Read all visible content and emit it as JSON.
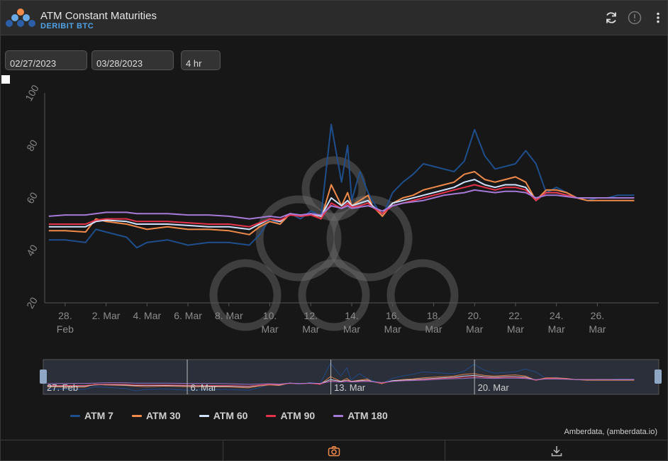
{
  "header": {
    "title": "ATM Constant Maturities",
    "subtitle": "DERIBIT BTC"
  },
  "controls": {
    "start_date": "02/27/2023",
    "end_date": "03/28/2023",
    "interval": "4 hr"
  },
  "credit": "Amberdata, (amberdata.io)",
  "colors": {
    "atm7": "#1f4e8c",
    "atm30": "#f08a4b",
    "atm60": "#cfe3ff",
    "atm90": "#e5334b",
    "atm180": "#a57ad6",
    "accent": "#f08a4b"
  },
  "chart_data": {
    "type": "line",
    "ylim": [
      20,
      100
    ],
    "yticks": [
      "20",
      "40",
      "60",
      "80",
      "100"
    ],
    "xlim": [
      0,
      30
    ],
    "xticks": [
      {
        "x": 1,
        "l1": "28.",
        "l2": "Feb"
      },
      {
        "x": 3,
        "l1": "2. Mar",
        "l2": ""
      },
      {
        "x": 5,
        "l1": "4. Mar",
        "l2": ""
      },
      {
        "x": 7,
        "l1": "6. Mar",
        "l2": ""
      },
      {
        "x": 9,
        "l1": "8. Mar",
        "l2": ""
      },
      {
        "x": 11,
        "l1": "10.",
        "l2": "Mar"
      },
      {
        "x": 13,
        "l1": "12.",
        "l2": "Mar"
      },
      {
        "x": 15,
        "l1": "14.",
        "l2": "Mar"
      },
      {
        "x": 17,
        "l1": "16.",
        "l2": "Mar"
      },
      {
        "x": 19,
        "l1": "18.",
        "l2": "Mar"
      },
      {
        "x": 21,
        "l1": "20.",
        "l2": "Mar"
      },
      {
        "x": 23,
        "l1": "22.",
        "l2": "Mar"
      },
      {
        "x": 25,
        "l1": "24.",
        "l2": "Mar"
      },
      {
        "x": 27,
        "l1": "26.",
        "l2": "Mar"
      }
    ],
    "navigator_labels": [
      {
        "x": 0,
        "label": "27. Feb"
      },
      {
        "x": 7,
        "label": "6. Mar"
      },
      {
        "x": 14,
        "label": "13. Mar"
      },
      {
        "x": 21,
        "label": "20. Mar"
      }
    ],
    "x": [
      0.2,
      1,
      2,
      2.5,
      3,
      4,
      4.5,
      5,
      6,
      7,
      8,
      9,
      10,
      10.5,
      11,
      11.5,
      12,
      12.5,
      13,
      13.5,
      14,
      14.5,
      14.8,
      15,
      15.4,
      15.8,
      16,
      16.5,
      17,
      17.5,
      18,
      18.5,
      19,
      19.5,
      20,
      20.5,
      21,
      21.5,
      22,
      22.5,
      23,
      23.5,
      24,
      24.5,
      25,
      25.5,
      26,
      26.5,
      27,
      27.5,
      28,
      28.8
    ],
    "series": [
      {
        "name": "ATM 7",
        "color": "#1f4e8c",
        "values": [
          44,
          44,
          43,
          48,
          47,
          45,
          41,
          43,
          44,
          42,
          43,
          43,
          42,
          46,
          52,
          50,
          54,
          52,
          55,
          53,
          88,
          66,
          80,
          59,
          70,
          62,
          59,
          53,
          62,
          66,
          69,
          73,
          72,
          71,
          70,
          74,
          86,
          76,
          71,
          72,
          73,
          78,
          73,
          62,
          64,
          62,
          60,
          59,
          60,
          60,
          61,
          61
        ]
      },
      {
        "name": "ATM 30",
        "color": "#f08a4b",
        "values": [
          47.5,
          47.5,
          47,
          52,
          51,
          50,
          49,
          48,
          49,
          48,
          48,
          47.5,
          46,
          49,
          51,
          50,
          54,
          53,
          54,
          52,
          65,
          57,
          62,
          57,
          59,
          61,
          57,
          53,
          58,
          60,
          61,
          63,
          64,
          65,
          66,
          69,
          70,
          67,
          66,
          67,
          68,
          66,
          59,
          63,
          63,
          62,
          60,
          59,
          59,
          59,
          59,
          59
        ]
      },
      {
        "name": "ATM 60",
        "color": "#cfe3ff",
        "values": [
          49,
          49,
          49,
          51,
          51.5,
          51,
          50,
          50,
          50,
          49.5,
          49,
          49,
          48,
          50,
          52,
          51,
          54,
          53,
          54,
          53,
          60,
          57,
          59,
          57,
          58,
          59,
          57,
          54,
          58,
          59,
          60,
          61,
          62,
          63,
          64,
          66,
          67,
          65,
          64,
          65,
          65,
          64,
          59,
          62,
          62,
          61,
          60,
          60,
          60,
          60,
          60,
          60
        ]
      },
      {
        "name": "ATM 90",
        "color": "#e5334b",
        "values": [
          50,
          50,
          50,
          51.5,
          52,
          52,
          51,
          51,
          51,
          50.5,
          50,
          50,
          49,
          50.5,
          52,
          51.5,
          53.5,
          53,
          53.5,
          52,
          58,
          56,
          58,
          56.5,
          57,
          58,
          56.5,
          54,
          57,
          58,
          59,
          60,
          61,
          62,
          63,
          64,
          65,
          64,
          63,
          64,
          64,
          63,
          59,
          62,
          62,
          61,
          60,
          60,
          60,
          60,
          60,
          60
        ]
      },
      {
        "name": "ATM 180",
        "color": "#a57ad6",
        "values": [
          53,
          53.5,
          53.5,
          54,
          54.5,
          54.5,
          54,
          54,
          54,
          53.5,
          53.5,
          53,
          52,
          52.5,
          53,
          52.5,
          54,
          53.5,
          54,
          53.5,
          57,
          56,
          57,
          56,
          56.5,
          57,
          56.5,
          55,
          57,
          58,
          58.5,
          59,
          60,
          61,
          61.5,
          62,
          63,
          62.5,
          62,
          62.5,
          62.5,
          62,
          60,
          61,
          61,
          60.5,
          60,
          60,
          60,
          60,
          60,
          60
        ]
      }
    ]
  }
}
